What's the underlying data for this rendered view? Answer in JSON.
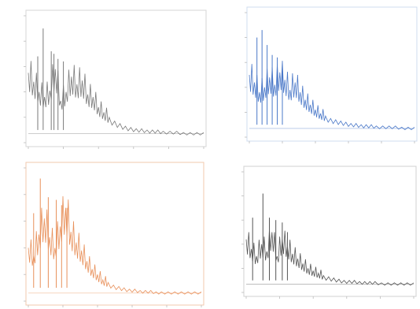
{
  "chart_data": [
    {
      "type": "line",
      "legend": "",
      "legend_position": "top-right",
      "color": "#7a7a7a",
      "x": [
        0,
        8,
        16,
        24,
        32,
        40,
        48,
        56,
        64,
        72,
        80,
        88,
        96,
        104,
        112,
        120,
        128,
        136,
        144,
        152,
        160,
        168,
        176,
        184,
        192,
        200,
        210,
        220,
        230,
        240,
        250,
        260
      ],
      "values": [
        55,
        48,
        40,
        36,
        41,
        58,
        33,
        40,
        52,
        46,
        49,
        38,
        36,
        28,
        24,
        20,
        17,
        15,
        13,
        12,
        11,
        11,
        10,
        10,
        10,
        9,
        9,
        9,
        8,
        8,
        8,
        8
      ],
      "spikes": [
        [
          14,
          68
        ],
        [
          22,
          90
        ],
        [
          34,
          72
        ],
        [
          38,
          70
        ],
        [
          44,
          66
        ],
        [
          52,
          64
        ]
      ],
      "ylim": [
        0,
        100
      ],
      "xlim": [
        0,
        260
      ],
      "grid": false
    },
    {
      "type": "line",
      "legend": "",
      "legend_position": "top-right",
      "color": "#4a78c8",
      "x": [
        0,
        8,
        16,
        24,
        32,
        40,
        48,
        56,
        64,
        72,
        80,
        88,
        96,
        104,
        112,
        120,
        128,
        136,
        144,
        152,
        160,
        168,
        176,
        184,
        192,
        200,
        210,
        220,
        230,
        240,
        250,
        260
      ],
      "values": [
        50,
        44,
        36,
        40,
        48,
        42,
        52,
        46,
        38,
        44,
        36,
        30,
        26,
        22,
        19,
        17,
        15,
        14,
        13,
        12,
        11,
        11,
        10,
        10,
        10,
        9,
        9,
        9,
        9,
        8,
        8,
        8
      ],
      "spikes": [
        [
          12,
          80
        ],
        [
          20,
          86
        ],
        [
          28,
          74
        ],
        [
          36,
          66
        ],
        [
          44,
          64
        ],
        [
          52,
          58
        ]
      ],
      "ylim": [
        0,
        100
      ],
      "xlim": [
        0,
        260
      ],
      "grid": false
    },
    {
      "type": "line",
      "legend": "",
      "legend_position": "top-right",
      "color": "#e8905a",
      "x": [
        0,
        8,
        16,
        24,
        32,
        40,
        48,
        56,
        64,
        72,
        80,
        88,
        96,
        104,
        112,
        120,
        128,
        136,
        144,
        152,
        160,
        168,
        176,
        184,
        192,
        200,
        210,
        220,
        230,
        240,
        250,
        260
      ],
      "values": [
        40,
        34,
        50,
        62,
        48,
        40,
        56,
        70,
        52,
        44,
        38,
        30,
        24,
        20,
        16,
        14,
        12,
        11,
        10,
        9,
        9,
        8,
        8,
        8,
        7,
        7,
        7,
        7,
        7,
        7,
        7,
        7
      ],
      "spikes": [
        [
          8,
          66
        ],
        [
          18,
          92
        ],
        [
          30,
          78
        ],
        [
          42,
          76
        ],
        [
          50,
          72
        ],
        [
          58,
          70
        ]
      ],
      "ylim": [
        0,
        100
      ],
      "xlim": [
        0,
        260
      ],
      "grid": false
    },
    {
      "type": "line",
      "legend": "",
      "legend_position": "top-right",
      "color": "#555555",
      "x": [
        0,
        8,
        16,
        24,
        32,
        40,
        48,
        56,
        64,
        72,
        80,
        88,
        96,
        104,
        112,
        120,
        128,
        136,
        144,
        152,
        160,
        168,
        176,
        184,
        192,
        200,
        210,
        220,
        230,
        240,
        250,
        260
      ],
      "values": [
        44,
        36,
        30,
        40,
        34,
        50,
        30,
        44,
        38,
        32,
        28,
        24,
        20,
        18,
        16,
        14,
        13,
        12,
        11,
        10,
        10,
        10,
        9,
        9,
        9,
        9,
        8,
        8,
        8,
        8,
        8,
        8
      ],
      "spikes": [
        [
          10,
          62
        ],
        [
          26,
          82
        ],
        [
          36,
          62
        ],
        [
          46,
          60
        ],
        [
          56,
          58
        ],
        [
          64,
          50
        ]
      ],
      "ylim": [
        0,
        100
      ],
      "xlim": [
        0,
        260
      ],
      "grid": false
    }
  ]
}
